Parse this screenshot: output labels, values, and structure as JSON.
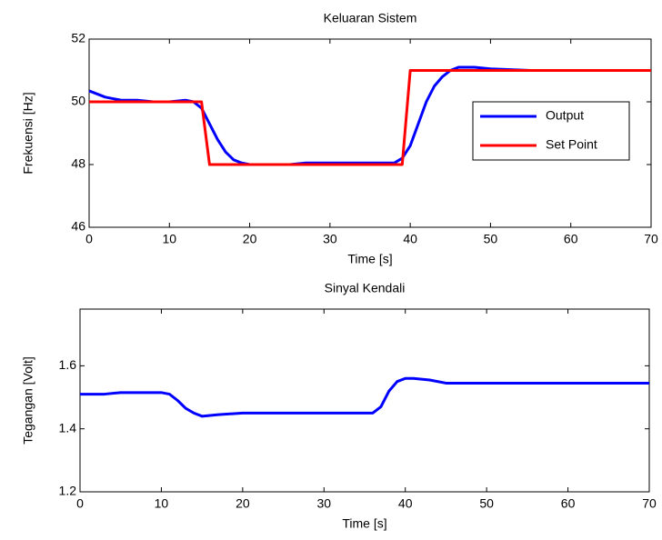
{
  "chart_data": [
    {
      "type": "line",
      "title": "Keluaran Sistem",
      "xlabel": "Time [s]",
      "ylabel": "Frekuensi [Hz]",
      "xlim": [
        0,
        70
      ],
      "ylim": [
        46,
        52
      ],
      "xticks": [
        0,
        10,
        20,
        30,
        40,
        50,
        60,
        70
      ],
      "yticks": [
        46,
        48,
        50,
        52
      ],
      "legend": "right",
      "series": [
        {
          "name": "Output",
          "color": "#0000ff",
          "x": [
            0,
            2,
            4,
            6,
            8,
            10,
            12,
            13,
            14,
            15,
            16,
            17,
            18,
            19,
            20,
            25,
            27,
            30,
            35,
            38,
            39,
            40,
            41,
            42,
            43,
            44,
            45,
            46,
            48,
            50,
            55,
            60,
            70
          ],
          "values": [
            50.35,
            50.15,
            50.05,
            50.05,
            50.0,
            50.0,
            50.05,
            50.0,
            49.8,
            49.3,
            48.8,
            48.4,
            48.15,
            48.05,
            48.0,
            48.0,
            48.05,
            48.05,
            48.05,
            48.05,
            48.2,
            48.6,
            49.3,
            50.0,
            50.5,
            50.8,
            51.0,
            51.1,
            51.1,
            51.05,
            51.0,
            51.0,
            51.0
          ]
        },
        {
          "name": "Set Point",
          "color": "#ff0000",
          "x": [
            0,
            14,
            15,
            39,
            40,
            70
          ],
          "values": [
            50,
            50,
            48,
            48,
            51,
            51
          ]
        }
      ]
    },
    {
      "type": "line",
      "title": "Sinyal Kendali",
      "xlabel": "Time [s]",
      "ylabel": "Tegangan [Volt]",
      "xlim": [
        0,
        70
      ],
      "ylim": [
        1.2,
        1.78
      ],
      "xticks": [
        0,
        10,
        20,
        30,
        40,
        50,
        60,
        70
      ],
      "yticks": [
        1.2,
        1.4,
        1.6
      ],
      "series": [
        {
          "color": "#0000ff",
          "x": [
            0,
            3,
            5,
            10,
            11,
            12,
            13,
            14,
            15,
            17,
            20,
            25,
            30,
            36,
            37,
            38,
            39,
            40,
            41,
            43,
            45,
            50,
            70
          ],
          "values": [
            1.51,
            1.51,
            1.515,
            1.515,
            1.51,
            1.49,
            1.465,
            1.45,
            1.44,
            1.445,
            1.45,
            1.45,
            1.45,
            1.45,
            1.47,
            1.52,
            1.55,
            1.56,
            1.56,
            1.555,
            1.545,
            1.545,
            1.545
          ]
        }
      ]
    }
  ]
}
